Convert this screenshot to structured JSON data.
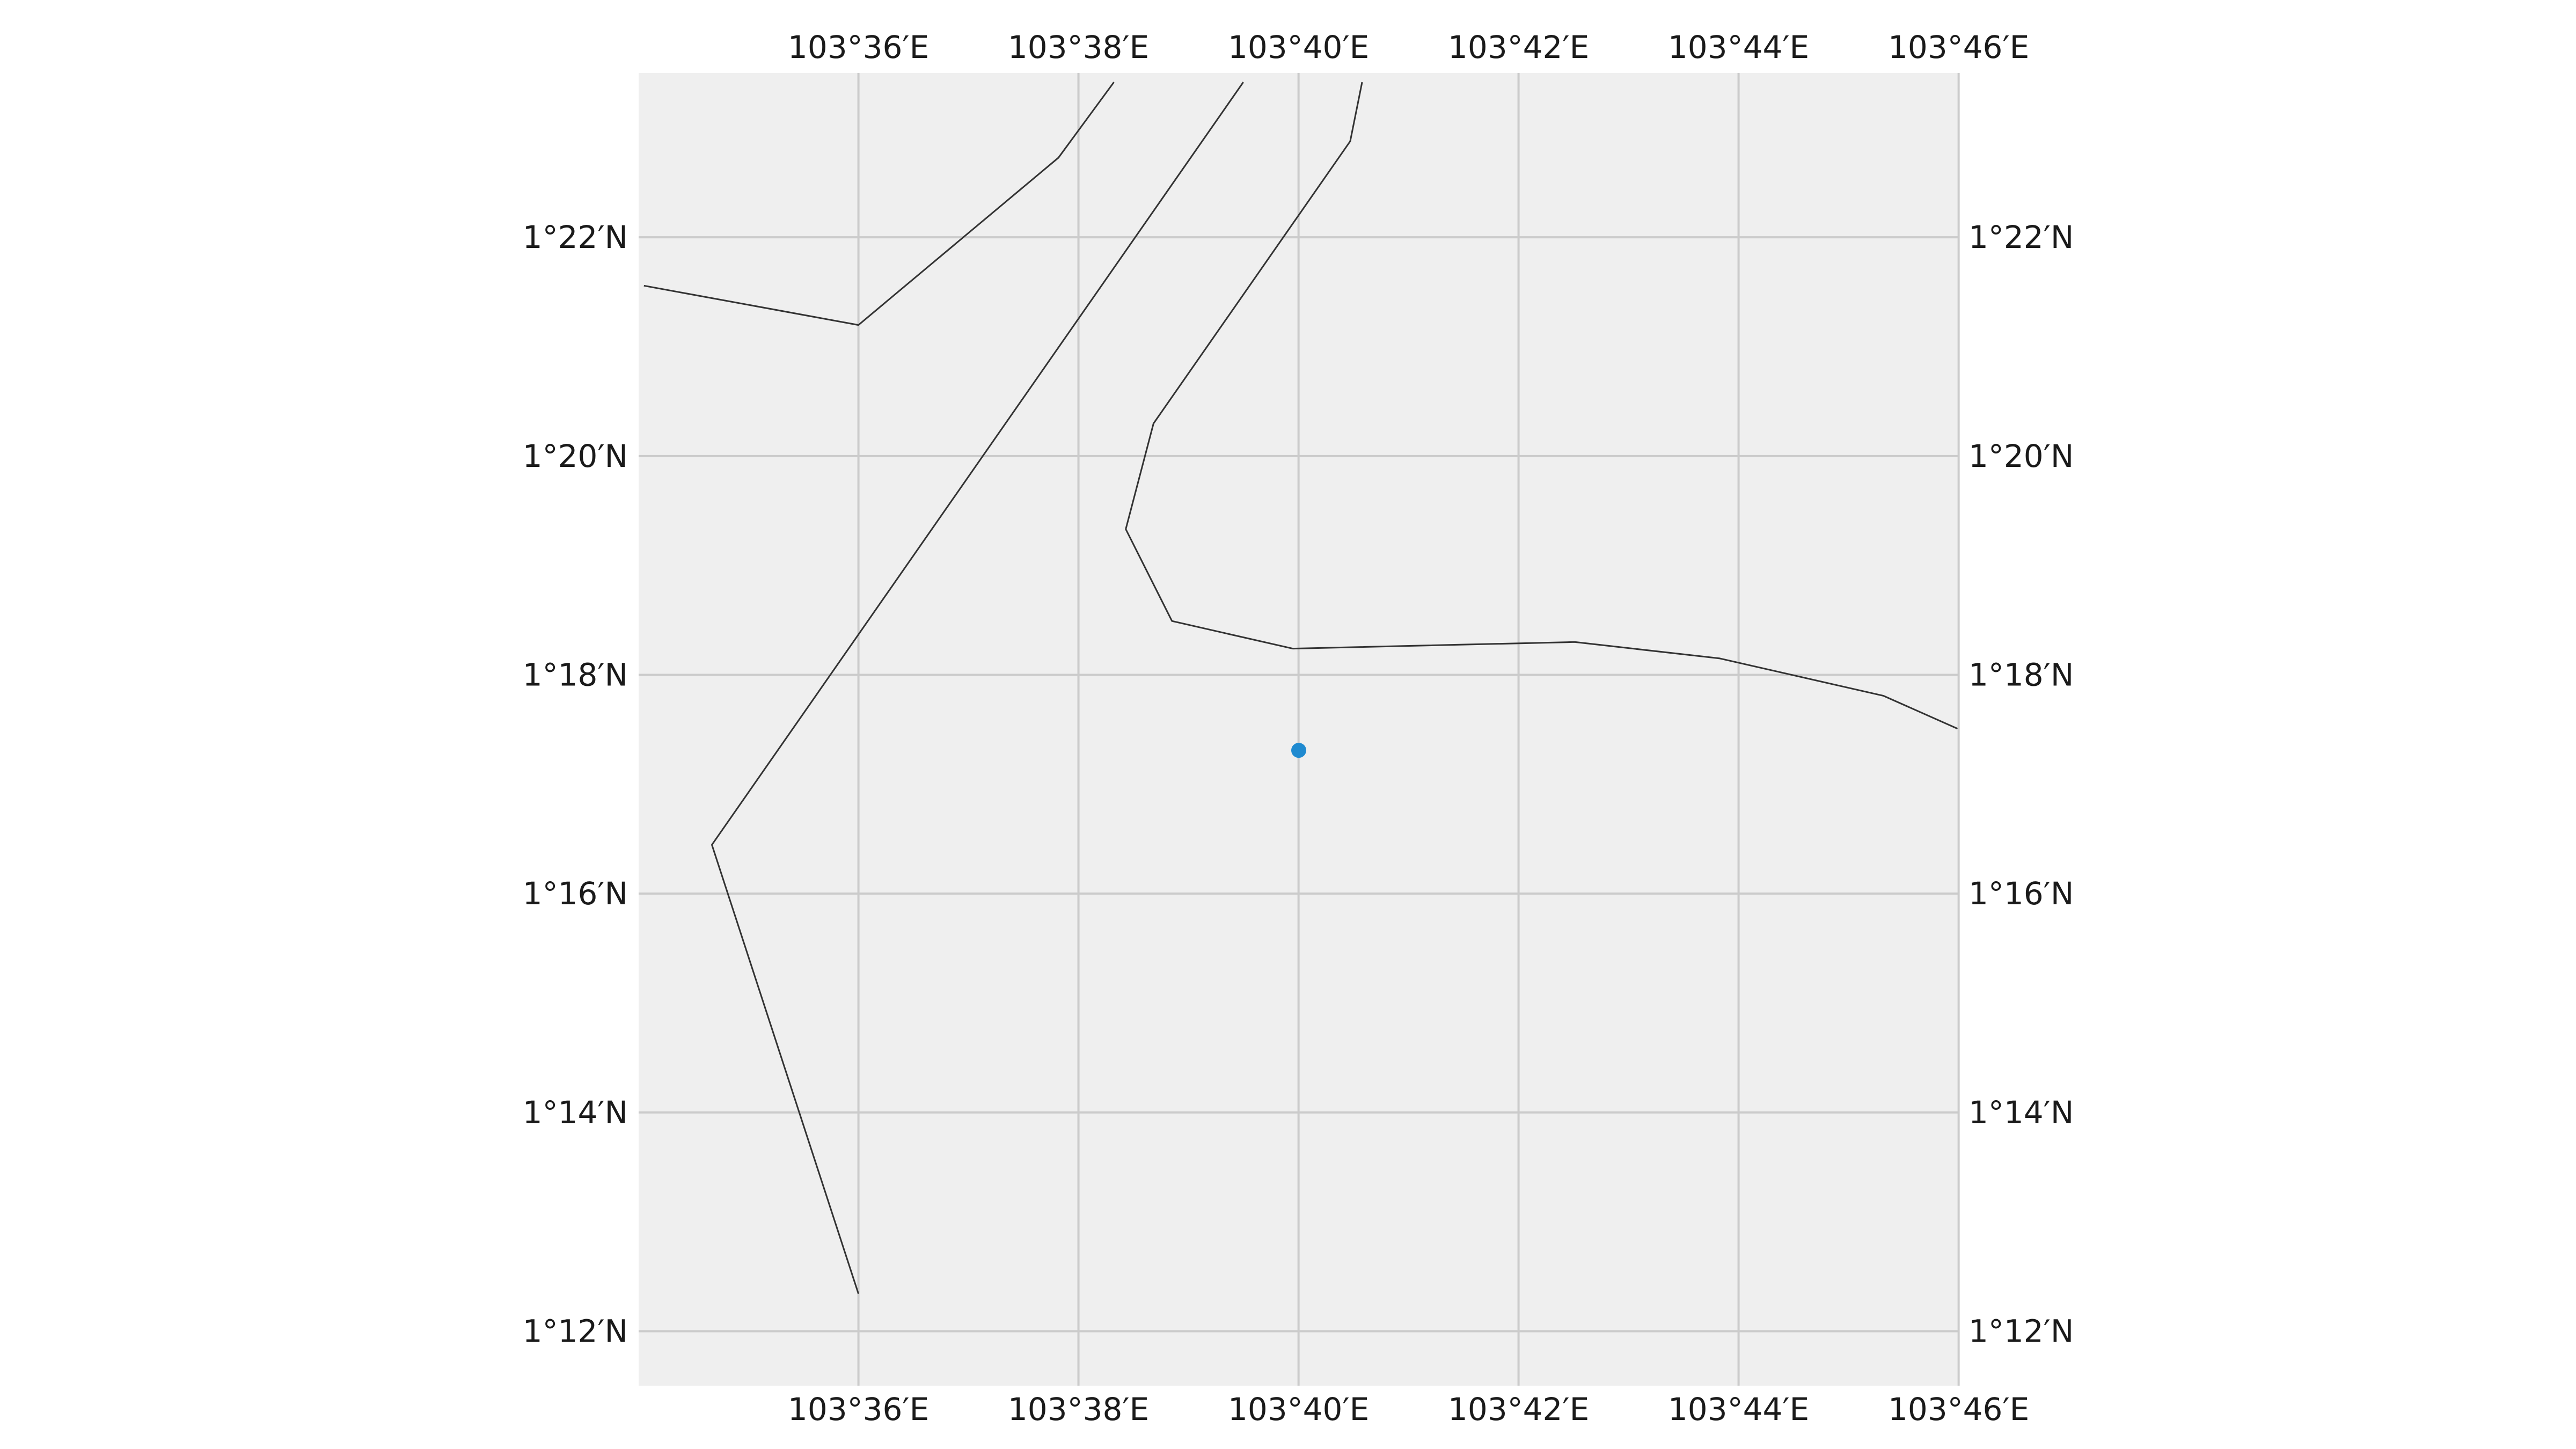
{
  "map": {
    "projection": "plate-carree",
    "extent": {
      "lon_min_deg": 103.5667,
      "lon_max_deg": 103.7667,
      "lat_min_deg": 1.1917,
      "lat_max_deg": 1.3917
    },
    "gridlines": true,
    "colors": {
      "background": "#efefef",
      "gridline": "#cbcbcb",
      "boundary": "#333333",
      "marker": "#1f8ad0"
    },
    "x_ticks": [
      {
        "lon": 103.6,
        "label": "103°36′E"
      },
      {
        "lon": 103.63333,
        "label": "103°38′E"
      },
      {
        "lon": 103.66667,
        "label": "103°40′E"
      },
      {
        "lon": 103.7,
        "label": "103°42′E"
      },
      {
        "lon": 103.73333,
        "label": "103°44′E"
      },
      {
        "lon": 103.76667,
        "label": "103°46′E"
      }
    ],
    "y_ticks": [
      {
        "lat": 1.36667,
        "label": "1°22′N"
      },
      {
        "lat": 1.33333,
        "label": "1°20′N"
      },
      {
        "lat": 1.3,
        "label": "1°18′N"
      },
      {
        "lat": 1.26667,
        "label": "1°16′N"
      },
      {
        "lat": 1.23333,
        "label": "1°14′N"
      },
      {
        "lat": 1.2,
        "label": "1°12′N"
      }
    ],
    "boundaries": [
      {
        "name": "boundary-a",
        "points": [
          [
            103.5675,
            1.3593
          ],
          [
            103.6,
            1.3533
          ],
          [
            103.6303,
            1.3788
          ],
          [
            103.6387,
            1.3903
          ]
        ]
      },
      {
        "name": "boundary-b",
        "points": [
          [
            103.6583,
            1.3903
          ],
          [
            103.5778,
            1.2741
          ],
          [
            103.6,
            1.2057
          ]
        ]
      },
      {
        "name": "boundary-c",
        "points": [
          [
            103.6763,
            1.3903
          ],
          [
            103.6745,
            1.3813
          ],
          [
            103.6447,
            1.3383
          ],
          [
            103.6405,
            1.3222
          ],
          [
            103.6475,
            1.3082
          ],
          [
            103.6658,
            1.304
          ],
          [
            103.7085,
            1.305
          ],
          [
            103.7305,
            1.3025
          ],
          [
            103.7553,
            1.2968
          ],
          [
            103.7665,
            1.2918
          ]
        ]
      }
    ],
    "markers": [
      {
        "name": "location-marker",
        "lon": 103.6667,
        "lat": 1.2885
      }
    ]
  }
}
